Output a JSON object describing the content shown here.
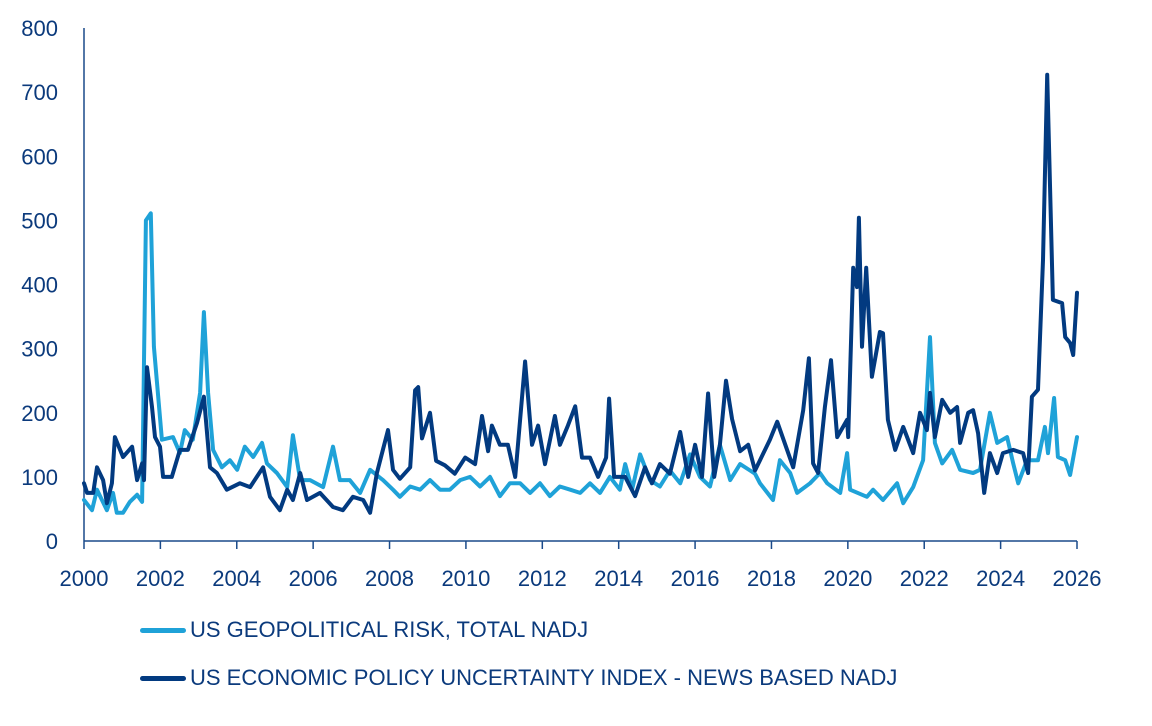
{
  "chart_data": {
    "type": "line",
    "title": "",
    "xlabel": "",
    "ylabel": "",
    "xlim": [
      2000,
      2026
    ],
    "ylim": [
      0,
      800
    ],
    "x_ticks": [
      "2000",
      "2002",
      "2004",
      "2006",
      "2008",
      "2010",
      "2012",
      "2014",
      "2016",
      "2018",
      "2020",
      "2022",
      "2024",
      "2026"
    ],
    "y_ticks": [
      "0",
      "100",
      "200",
      "300",
      "400",
      "500",
      "600",
      "700",
      "800"
    ],
    "grid": false,
    "legend_position": "bottom-left",
    "series": [
      {
        "name": "US GEOPOLITICAL RISK, TOTAL NADJ",
        "color": "#1fa2d8",
        "points": [
          [
            2000.0,
            64
          ],
          [
            2000.21,
            48
          ],
          [
            2000.34,
            80
          ],
          [
            2000.6,
            48
          ],
          [
            2000.76,
            75
          ],
          [
            2000.86,
            44
          ],
          [
            2001.02,
            44
          ],
          [
            2001.2,
            61
          ],
          [
            2001.39,
            72
          ],
          [
            2001.52,
            61
          ],
          [
            2001.62,
            500
          ],
          [
            2001.75,
            511
          ],
          [
            2001.83,
            303
          ],
          [
            2002.04,
            158
          ],
          [
            2002.33,
            162
          ],
          [
            2002.51,
            137
          ],
          [
            2002.64,
            173
          ],
          [
            2002.85,
            158
          ],
          [
            2003.04,
            231
          ],
          [
            2003.14,
            357
          ],
          [
            2003.25,
            231
          ],
          [
            2003.38,
            142
          ],
          [
            2003.61,
            115
          ],
          [
            2003.82,
            126
          ],
          [
            2004.01,
            111
          ],
          [
            2004.21,
            147
          ],
          [
            2004.43,
            131
          ],
          [
            2004.66,
            153
          ],
          [
            2004.79,
            121
          ],
          [
            2005.05,
            106
          ],
          [
            2005.32,
            84
          ],
          [
            2005.47,
            165
          ],
          [
            2005.66,
            95
          ],
          [
            2005.92,
            95
          ],
          [
            2006.26,
            84
          ],
          [
            2006.52,
            147
          ],
          [
            2006.7,
            95
          ],
          [
            2006.96,
            95
          ],
          [
            2007.23,
            75
          ],
          [
            2007.49,
            111
          ],
          [
            2007.83,
            95
          ],
          [
            2008.09,
            80
          ],
          [
            2008.27,
            69
          ],
          [
            2008.54,
            85
          ],
          [
            2008.8,
            80
          ],
          [
            2009.06,
            95
          ],
          [
            2009.32,
            80
          ],
          [
            2009.58,
            80
          ],
          [
            2009.85,
            95
          ],
          [
            2010.11,
            100
          ],
          [
            2010.37,
            85
          ],
          [
            2010.63,
            100
          ],
          [
            2010.89,
            70
          ],
          [
            2011.15,
            90
          ],
          [
            2011.42,
            90
          ],
          [
            2011.68,
            75
          ],
          [
            2011.94,
            90
          ],
          [
            2012.2,
            70
          ],
          [
            2012.46,
            85
          ],
          [
            2012.73,
            80
          ],
          [
            2012.99,
            75
          ],
          [
            2013.25,
            90
          ],
          [
            2013.51,
            75
          ],
          [
            2013.77,
            100
          ],
          [
            2014.03,
            80
          ],
          [
            2014.17,
            120
          ],
          [
            2014.35,
            80
          ],
          [
            2014.56,
            135
          ],
          [
            2014.82,
            95
          ],
          [
            2015.08,
            85
          ],
          [
            2015.34,
            110
          ],
          [
            2015.61,
            90
          ],
          [
            2015.87,
            135
          ],
          [
            2016.13,
            100
          ],
          [
            2016.39,
            85
          ],
          [
            2016.65,
            150
          ],
          [
            2016.92,
            95
          ],
          [
            2017.18,
            120
          ],
          [
            2017.44,
            110
          ],
          [
            2017.57,
            105
          ],
          [
            2017.7,
            90
          ],
          [
            2018.04,
            64
          ],
          [
            2018.22,
            126
          ],
          [
            2018.49,
            106
          ],
          [
            2018.67,
            75
          ],
          [
            2019.01,
            90
          ],
          [
            2019.27,
            106
          ],
          [
            2019.46,
            90
          ],
          [
            2019.8,
            75
          ],
          [
            2019.98,
            137
          ],
          [
            2020.06,
            80
          ],
          [
            2020.5,
            69
          ],
          [
            2020.66,
            80
          ],
          [
            2020.92,
            64
          ],
          [
            2021.29,
            90
          ],
          [
            2021.45,
            59
          ],
          [
            2021.71,
            84
          ],
          [
            2021.97,
            126
          ],
          [
            2022.15,
            318
          ],
          [
            2022.28,
            153
          ],
          [
            2022.47,
            121
          ],
          [
            2022.73,
            142
          ],
          [
            2022.94,
            111
          ],
          [
            2023.28,
            106
          ],
          [
            2023.46,
            111
          ],
          [
            2023.72,
            200
          ],
          [
            2023.91,
            153
          ],
          [
            2024.17,
            162
          ],
          [
            2024.33,
            121
          ],
          [
            2024.46,
            90
          ],
          [
            2024.69,
            126
          ],
          [
            2024.98,
            126
          ],
          [
            2025.16,
            178
          ],
          [
            2025.24,
            137
          ],
          [
            2025.4,
            223
          ],
          [
            2025.5,
            131
          ],
          [
            2025.69,
            126
          ],
          [
            2025.82,
            103
          ],
          [
            2026.0,
            162
          ]
        ]
      },
      {
        "name": "US ECONOMIC POLICY UNCERTAINTY INDEX - NEWS BASED NADJ",
        "color": "#023a80",
        "points": [
          [
            2000.0,
            90
          ],
          [
            2000.08,
            75
          ],
          [
            2000.24,
            75
          ],
          [
            2000.34,
            115
          ],
          [
            2000.5,
            95
          ],
          [
            2000.6,
            59
          ],
          [
            2000.73,
            90
          ],
          [
            2000.81,
            162
          ],
          [
            2001.02,
            131
          ],
          [
            2001.26,
            147
          ],
          [
            2001.39,
            95
          ],
          [
            2001.52,
            121
          ],
          [
            2001.57,
            95
          ],
          [
            2001.65,
            271
          ],
          [
            2001.78,
            209
          ],
          [
            2001.86,
            162
          ],
          [
            2001.99,
            147
          ],
          [
            2002.07,
            100
          ],
          [
            2002.3,
            100
          ],
          [
            2002.51,
            142
          ],
          [
            2002.72,
            142
          ],
          [
            2002.96,
            184
          ],
          [
            2003.14,
            225
          ],
          [
            2003.3,
            115
          ],
          [
            2003.48,
            106
          ],
          [
            2003.74,
            80
          ],
          [
            2004.08,
            90
          ],
          [
            2004.35,
            84
          ],
          [
            2004.69,
            115
          ],
          [
            2004.87,
            69
          ],
          [
            2005.13,
            48
          ],
          [
            2005.32,
            80
          ],
          [
            2005.47,
            64
          ],
          [
            2005.66,
            106
          ],
          [
            2005.84,
            64
          ],
          [
            2006.18,
            75
          ],
          [
            2006.52,
            53
          ],
          [
            2006.78,
            48
          ],
          [
            2007.04,
            69
          ],
          [
            2007.31,
            64
          ],
          [
            2007.49,
            44
          ],
          [
            2007.67,
            106
          ],
          [
            2007.96,
            173
          ],
          [
            2008.09,
            111
          ],
          [
            2008.27,
            97
          ],
          [
            2008.54,
            115
          ],
          [
            2008.67,
            235
          ],
          [
            2008.75,
            240
          ],
          [
            2008.85,
            160
          ],
          [
            2009.06,
            200
          ],
          [
            2009.22,
            125
          ],
          [
            2009.45,
            118
          ],
          [
            2009.71,
            105
          ],
          [
            2009.98,
            130
          ],
          [
            2010.24,
            120
          ],
          [
            2010.42,
            195
          ],
          [
            2010.58,
            140
          ],
          [
            2010.68,
            180
          ],
          [
            2010.89,
            150
          ],
          [
            2011.1,
            150
          ],
          [
            2011.29,
            100
          ],
          [
            2011.55,
            280
          ],
          [
            2011.73,
            150
          ],
          [
            2011.89,
            180
          ],
          [
            2012.07,
            120
          ],
          [
            2012.33,
            195
          ],
          [
            2012.46,
            150
          ],
          [
            2012.67,
            180
          ],
          [
            2012.86,
            210
          ],
          [
            2013.04,
            130
          ],
          [
            2013.25,
            130
          ],
          [
            2013.46,
            100
          ],
          [
            2013.67,
            130
          ],
          [
            2013.75,
            222
          ],
          [
            2013.88,
            100
          ],
          [
            2014.17,
            100
          ],
          [
            2014.43,
            70
          ],
          [
            2014.69,
            115
          ],
          [
            2014.87,
            90
          ],
          [
            2015.08,
            120
          ],
          [
            2015.34,
            105
          ],
          [
            2015.61,
            170
          ],
          [
            2015.82,
            100
          ],
          [
            2016.0,
            150
          ],
          [
            2016.18,
            100
          ],
          [
            2016.34,
            230
          ],
          [
            2016.5,
            100
          ],
          [
            2016.65,
            150
          ],
          [
            2016.81,
            250
          ],
          [
            2016.97,
            190
          ],
          [
            2017.18,
            140
          ],
          [
            2017.39,
            150
          ],
          [
            2017.57,
            110
          ],
          [
            2017.7,
            126
          ],
          [
            2017.96,
            158
          ],
          [
            2018.15,
            186
          ],
          [
            2018.57,
            115
          ],
          [
            2018.83,
            204
          ],
          [
            2018.98,
            285
          ],
          [
            2019.09,
            121
          ],
          [
            2019.22,
            106
          ],
          [
            2019.4,
            209
          ],
          [
            2019.56,
            282
          ],
          [
            2019.72,
            162
          ],
          [
            2019.98,
            189
          ],
          [
            2020.01,
            162
          ],
          [
            2020.14,
            426
          ],
          [
            2020.24,
            396
          ],
          [
            2020.29,
            504
          ],
          [
            2020.37,
            303
          ],
          [
            2020.48,
            426
          ],
          [
            2020.63,
            256
          ],
          [
            2020.84,
            326
          ],
          [
            2020.92,
            324
          ],
          [
            2021.05,
            189
          ],
          [
            2021.24,
            142
          ],
          [
            2021.45,
            178
          ],
          [
            2021.71,
            137
          ],
          [
            2021.89,
            200
          ],
          [
            2022.07,
            173
          ],
          [
            2022.15,
            231
          ],
          [
            2022.28,
            162
          ],
          [
            2022.47,
            220
          ],
          [
            2022.68,
            200
          ],
          [
            2022.86,
            209
          ],
          [
            2022.94,
            153
          ],
          [
            2023.15,
            200
          ],
          [
            2023.28,
            204
          ],
          [
            2023.41,
            168
          ],
          [
            2023.57,
            75
          ],
          [
            2023.72,
            137
          ],
          [
            2023.91,
            106
          ],
          [
            2024.06,
            137
          ],
          [
            2024.33,
            142
          ],
          [
            2024.59,
            137
          ],
          [
            2024.72,
            106
          ],
          [
            2024.82,
            225
          ],
          [
            2024.98,
            236
          ],
          [
            2025.11,
            438
          ],
          [
            2025.22,
            727
          ],
          [
            2025.37,
            376
          ],
          [
            2025.61,
            371
          ],
          [
            2025.69,
            318
          ],
          [
            2025.82,
            309
          ],
          [
            2025.9,
            290
          ],
          [
            2026.0,
            387
          ]
        ]
      }
    ]
  }
}
